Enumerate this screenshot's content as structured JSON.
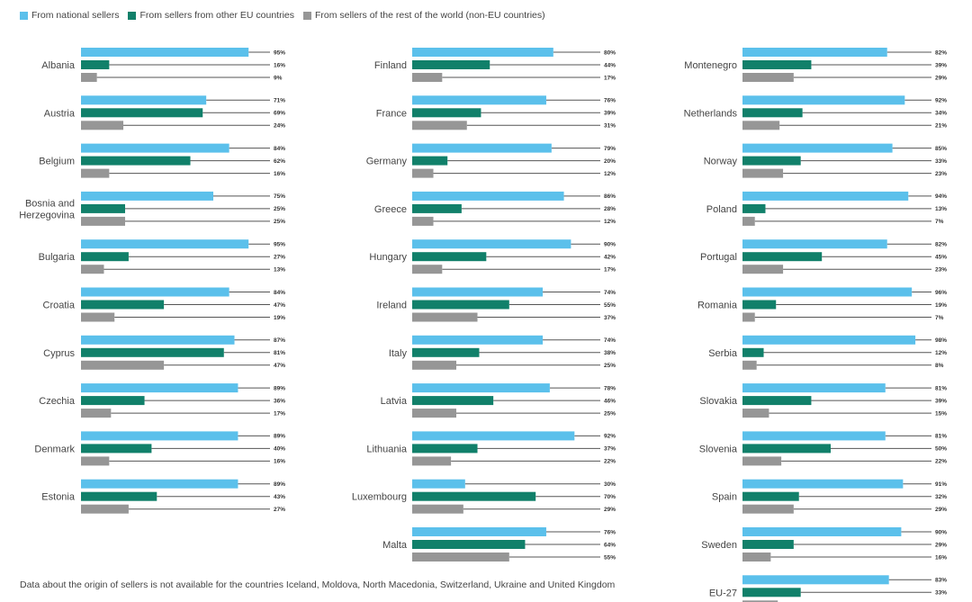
{
  "legend": [
    {
      "label": "From national sellers",
      "color": "#5bc0eb"
    },
    {
      "label": "From sellers from other EU countries",
      "color": "#11806a"
    },
    {
      "label": "From sellers of the rest of the world (non-EU countries)",
      "color": "#969696"
    }
  ],
  "footnote": "Data about the origin of sellers is not available for the countries Iceland, Moldova, North Macedonia, Switzerland, Ukraine and United Kingdom",
  "chart_data": {
    "type": "bar",
    "orientation": "horizontal",
    "value_suffix": "%",
    "xlim": [
      0,
      100
    ],
    "series": [
      {
        "name": "From national sellers",
        "color": "#5bc0eb"
      },
      {
        "name": "From sellers from other EU countries",
        "color": "#11806a"
      },
      {
        "name": "From sellers of the rest of the world (non-EU countries)",
        "color": "#969696"
      }
    ],
    "columns": [
      [
        {
          "label": "Albania",
          "values": [
            95,
            16,
            9
          ]
        },
        {
          "label": "Austria",
          "values": [
            71,
            69,
            24
          ]
        },
        {
          "label": "Belgium",
          "values": [
            84,
            62,
            16
          ]
        },
        {
          "label": "Bosnia and Herzegovina",
          "label_lines": [
            "Bosnia and",
            "Herzegovina"
          ],
          "values": [
            75,
            25,
            25
          ]
        },
        {
          "label": "Bulgaria",
          "values": [
            95,
            27,
            13
          ]
        },
        {
          "label": "Croatia",
          "values": [
            84,
            47,
            19
          ]
        },
        {
          "label": "Cyprus",
          "values": [
            87,
            81,
            47
          ]
        },
        {
          "label": "Czechia",
          "values": [
            89,
            36,
            17
          ]
        },
        {
          "label": "Denmark",
          "values": [
            89,
            40,
            16
          ]
        },
        {
          "label": "Estonia",
          "values": [
            89,
            43,
            27
          ]
        }
      ],
      [
        {
          "label": "Finland",
          "values": [
            80,
            44,
            17
          ]
        },
        {
          "label": "France",
          "values": [
            76,
            39,
            31
          ]
        },
        {
          "label": "Germany",
          "values": [
            79,
            20,
            12
          ]
        },
        {
          "label": "Greece",
          "values": [
            86,
            28,
            12
          ]
        },
        {
          "label": "Hungary",
          "values": [
            90,
            42,
            17
          ]
        },
        {
          "label": "Ireland",
          "values": [
            74,
            55,
            37
          ]
        },
        {
          "label": "Italy",
          "values": [
            74,
            38,
            25
          ]
        },
        {
          "label": "Latvia",
          "values": [
            78,
            46,
            25
          ]
        },
        {
          "label": "Lithuania",
          "values": [
            92,
            37,
            22
          ]
        },
        {
          "label": "Luxembourg",
          "values": [
            30,
            70,
            29
          ]
        },
        {
          "label": "Malta",
          "values": [
            76,
            64,
            55
          ]
        }
      ],
      [
        {
          "label": "Montenegro",
          "values": [
            82,
            39,
            29
          ]
        },
        {
          "label": "Netherlands",
          "values": [
            92,
            34,
            21
          ]
        },
        {
          "label": "Norway",
          "values": [
            85,
            33,
            23
          ]
        },
        {
          "label": "Poland",
          "values": [
            94,
            13,
            7
          ]
        },
        {
          "label": "Portugal",
          "values": [
            82,
            45,
            23
          ]
        },
        {
          "label": "Romania",
          "values": [
            96,
            19,
            7
          ]
        },
        {
          "label": "Serbia",
          "values": [
            98,
            12,
            8
          ]
        },
        {
          "label": "Slovakia",
          "values": [
            81,
            39,
            15
          ]
        },
        {
          "label": "Slovenia",
          "values": [
            81,
            50,
            22
          ]
        },
        {
          "label": "Spain",
          "values": [
            91,
            32,
            29
          ]
        },
        {
          "label": "Sweden",
          "values": [
            90,
            29,
            16
          ]
        },
        {
          "label": "EU-27",
          "values": [
            83,
            33,
            20
          ]
        }
      ]
    ]
  }
}
